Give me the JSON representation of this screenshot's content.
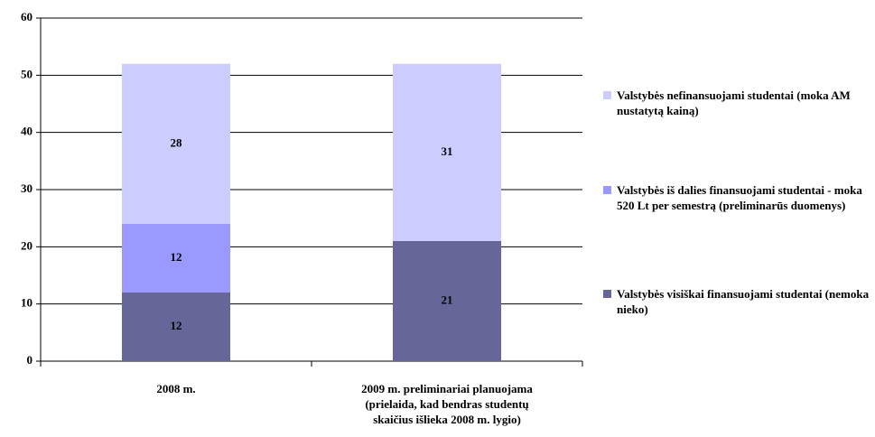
{
  "chart_data": {
    "type": "stacked_bar",
    "categories": [
      "2008 m.",
      "2009 m. preliminariai planuojama (prielaida, kad bendras studentų skaičius išlieka 2008 m. lygio)"
    ],
    "series": [
      {
        "name": "Valstybės visiškai finansuojami studentai (nemoka nieko)",
        "color": "#666699",
        "values": [
          12,
          21
        ]
      },
      {
        "name": "Valstybės iš dalies finansuojami studentai - moka 520 Lt per semestrą (preliminarūs duomenys)",
        "color": "#9999ff",
        "values": [
          12,
          null
        ]
      },
      {
        "name": "Valstybės nefinansuojami studentai (moka AM nustatytą kainą)",
        "color": "#ccccff",
        "values": [
          28,
          31
        ]
      }
    ],
    "ylim": [
      0,
      60
    ],
    "yticks": [
      0,
      10,
      20,
      30,
      40,
      50,
      60
    ],
    "grid": true,
    "legend": "right"
  }
}
